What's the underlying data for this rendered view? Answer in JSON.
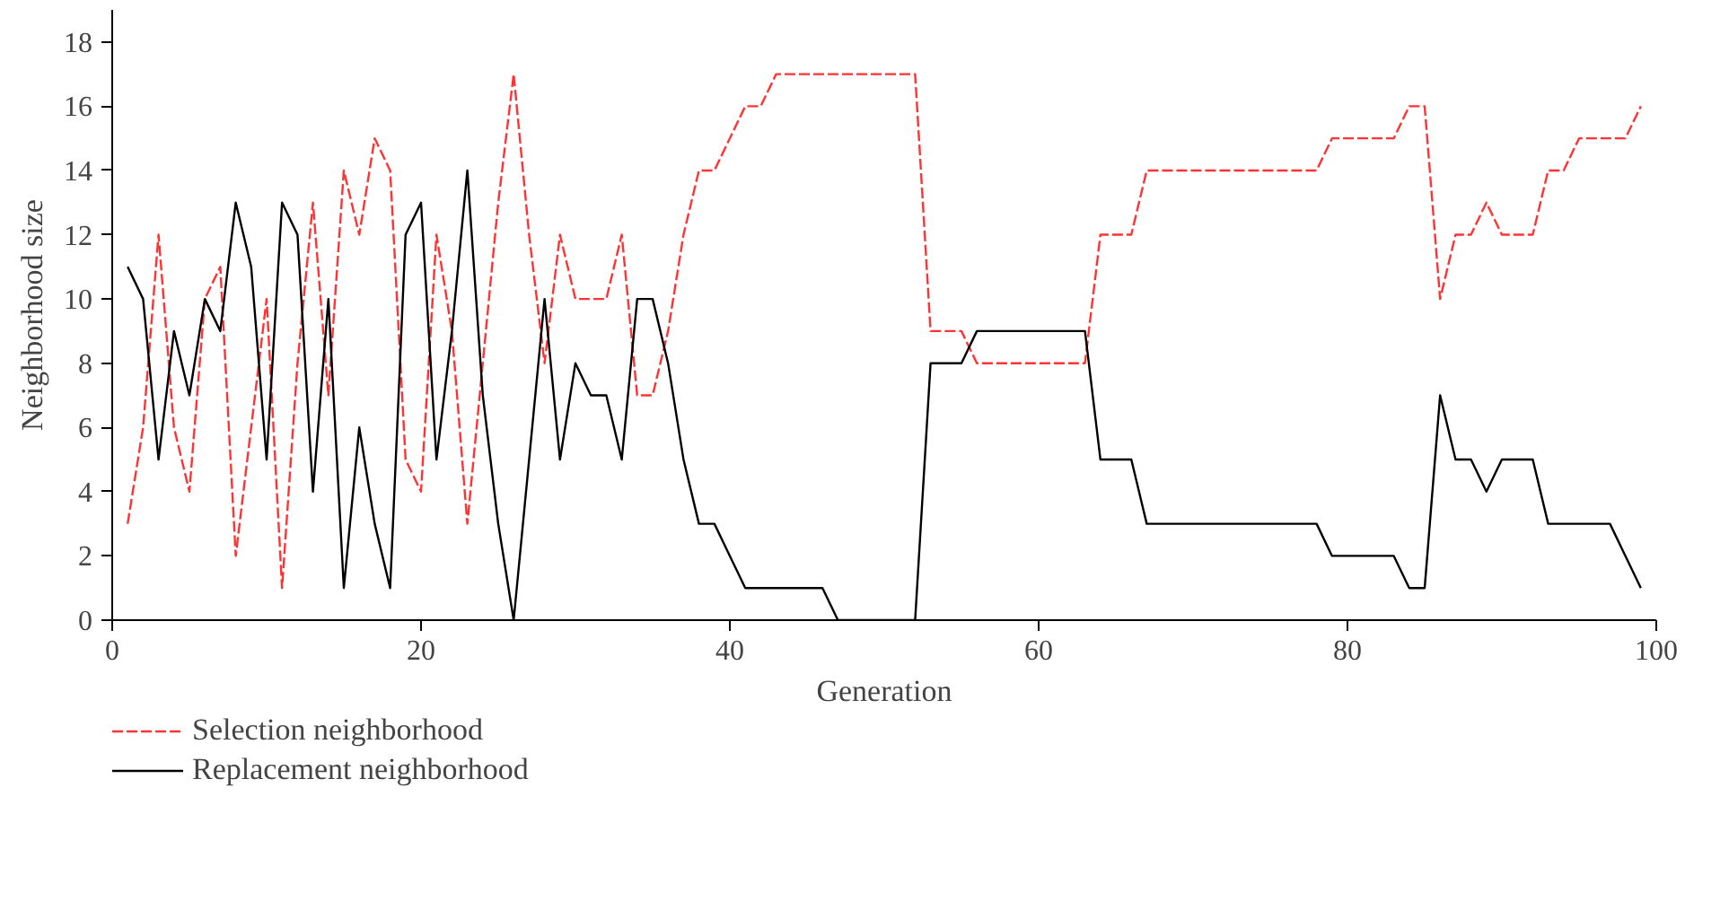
{
  "chart_data": {
    "type": "line",
    "xlabel": "Generation",
    "ylabel": "Neighborhood size",
    "x": [
      1,
      2,
      3,
      4,
      5,
      6,
      7,
      8,
      9,
      10,
      11,
      12,
      13,
      14,
      15,
      16,
      17,
      18,
      19,
      20,
      21,
      22,
      23,
      24,
      25,
      26,
      27,
      28,
      29,
      30,
      31,
      32,
      33,
      34,
      35,
      36,
      37,
      38,
      39,
      40,
      41,
      42,
      43,
      44,
      45,
      46,
      47,
      48,
      49,
      50,
      51,
      52,
      53,
      54,
      55,
      56,
      57,
      58,
      59,
      60,
      61,
      62,
      63,
      64,
      65,
      66,
      67,
      68,
      69,
      70,
      71,
      72,
      73,
      74,
      75,
      76,
      77,
      78,
      79,
      80,
      81,
      82,
      83,
      84,
      85,
      86,
      87,
      88,
      89,
      90,
      91,
      92,
      93,
      94,
      95,
      96,
      97,
      98,
      99
    ],
    "series": [
      {
        "name": "Selection neighborhood",
        "color": "#ff3333",
        "line_style": "dashed",
        "values": [
          3,
          6,
          12,
          6,
          4,
          10,
          11,
          2,
          6,
          10,
          1,
          8,
          13,
          7,
          14,
          12,
          15,
          14,
          5,
          4,
          12,
          9,
          3,
          8,
          13,
          17,
          12,
          8,
          12,
          10,
          10,
          10,
          12,
          7,
          7,
          9,
          12,
          14,
          14,
          15,
          16,
          16,
          17,
          17,
          17,
          17,
          17,
          17,
          17,
          17,
          17,
          17,
          9,
          9,
          9,
          8,
          8,
          8,
          8,
          8,
          8,
          8,
          8,
          12,
          12,
          12,
          14,
          14,
          14,
          14,
          14,
          14,
          14,
          14,
          14,
          14,
          14,
          14,
          15,
          15,
          15,
          15,
          15,
          16,
          16,
          10,
          12,
          12,
          13,
          12,
          12,
          12,
          14,
          14,
          15,
          15,
          15,
          15,
          16
        ]
      },
      {
        "name": "Replacement neighborhood",
        "color": "#000000",
        "line_style": "solid",
        "values": [
          11,
          10,
          5,
          9,
          7,
          10,
          9,
          13,
          11,
          5,
          13,
          12,
          4,
          10,
          1,
          6,
          3,
          1,
          12,
          13,
          5,
          9,
          14,
          7,
          3,
          0,
          5,
          10,
          5,
          8,
          7,
          7,
          5,
          10,
          10,
          8,
          5,
          3,
          3,
          2,
          1,
          1,
          1,
          1,
          1,
          1,
          0,
          0,
          0,
          0,
          0,
          0,
          8,
          8,
          8,
          9,
          9,
          9,
          9,
          9,
          9,
          9,
          9,
          5,
          5,
          5,
          3,
          3,
          3,
          3,
          3,
          3,
          3,
          3,
          3,
          3,
          3,
          3,
          2,
          2,
          2,
          2,
          2,
          1,
          1,
          7,
          5,
          5,
          4,
          5,
          5,
          5,
          3,
          3,
          3,
          3,
          3,
          2,
          1
        ]
      }
    ],
    "xlim": [
      0,
      100
    ],
    "xticks": [
      0,
      20,
      40,
      60,
      80,
      100
    ],
    "ylim": [
      0,
      19
    ],
    "yticks": [
      0,
      2,
      4,
      6,
      8,
      10,
      12,
      14,
      16,
      18
    ],
    "grid": false,
    "legend": "bottom left",
    "marker": "none"
  }
}
